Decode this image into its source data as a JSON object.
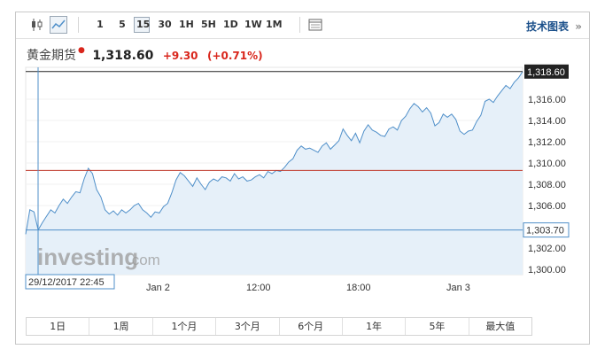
{
  "toolbar": {
    "intervals": [
      "1",
      "5",
      "15",
      "30",
      "1H",
      "5H",
      "1D",
      "1W",
      "1M"
    ],
    "active_interval": "15",
    "tech_chart_label": "技术图表",
    "tech_chart_arrow": "»"
  },
  "quote": {
    "name": "黄金期货",
    "price": "1,318.60",
    "change": "+9.30",
    "change_pct": "(+0.71%)"
  },
  "chart_data": {
    "type": "area",
    "y_ticks": [
      "1,300.00",
      "1,302.00",
      "1,304.00",
      "1,306.00",
      "1,308.00",
      "1,310.00",
      "1,312.00",
      "1,314.00",
      "1,316.00"
    ],
    "x_ticks": [
      "Jan 2",
      "12:00",
      "18:00",
      "Jan 3"
    ],
    "ylim": [
      1299.5,
      1319.0
    ],
    "current_price_label": "1,318.60",
    "current_price": 1318.6,
    "crosshair_price_label": "1,303.70",
    "crosshair_price": 1303.7,
    "crosshair_time": "29/12/2017 22:45",
    "previous_close": 1309.3,
    "watermark": "investing",
    "watermark_suffix": ".com",
    "values": [
      1303.3,
      1305.6,
      1305.4,
      1303.7,
      1304.4,
      1305.0,
      1305.6,
      1305.3,
      1306.0,
      1306.6,
      1306.2,
      1306.8,
      1307.3,
      1307.2,
      1308.5,
      1309.5,
      1309.0,
      1307.5,
      1306.8,
      1305.6,
      1305.2,
      1305.5,
      1305.1,
      1305.6,
      1305.3,
      1305.6,
      1306.0,
      1306.2,
      1305.6,
      1305.3,
      1304.9,
      1305.4,
      1305.3,
      1305.9,
      1306.2,
      1307.2,
      1308.4,
      1309.1,
      1308.8,
      1308.3,
      1307.8,
      1308.6,
      1308.0,
      1307.5,
      1308.2,
      1308.5,
      1308.3,
      1308.7,
      1308.6,
      1308.3,
      1309.0,
      1308.5,
      1308.7,
      1308.3,
      1308.4,
      1308.7,
      1308.9,
      1308.6,
      1309.2,
      1309.0,
      1309.3,
      1309.2,
      1309.6,
      1310.1,
      1310.4,
      1311.2,
      1311.6,
      1311.3,
      1311.4,
      1311.2,
      1311.0,
      1311.6,
      1311.9,
      1311.3,
      1311.7,
      1312.1,
      1313.2,
      1312.6,
      1312.1,
      1312.8,
      1311.9,
      1313.0,
      1313.6,
      1313.1,
      1312.9,
      1312.6,
      1312.5,
      1313.2,
      1313.4,
      1313.1,
      1314.0,
      1314.4,
      1315.1,
      1315.6,
      1315.3,
      1314.8,
      1315.2,
      1314.7,
      1313.5,
      1313.8,
      1314.6,
      1314.3,
      1314.6,
      1314.1,
      1313.0,
      1312.7,
      1313.0,
      1313.1,
      1313.9,
      1314.5,
      1315.8,
      1316.0,
      1315.7,
      1316.3,
      1316.8,
      1317.3,
      1317.0,
      1317.6,
      1318.0,
      1318.6
    ]
  },
  "ranges": [
    "1日",
    "1周",
    "1个月",
    "3个月",
    "6个月",
    "1年",
    "5年",
    "最大值"
  ],
  "colors": {
    "line": "#4f8fc9",
    "fill": "#e6f0f9",
    "prev_close_line": "#c0392b",
    "crosshair": "#4f8fc9",
    "up": "#d9261c"
  }
}
